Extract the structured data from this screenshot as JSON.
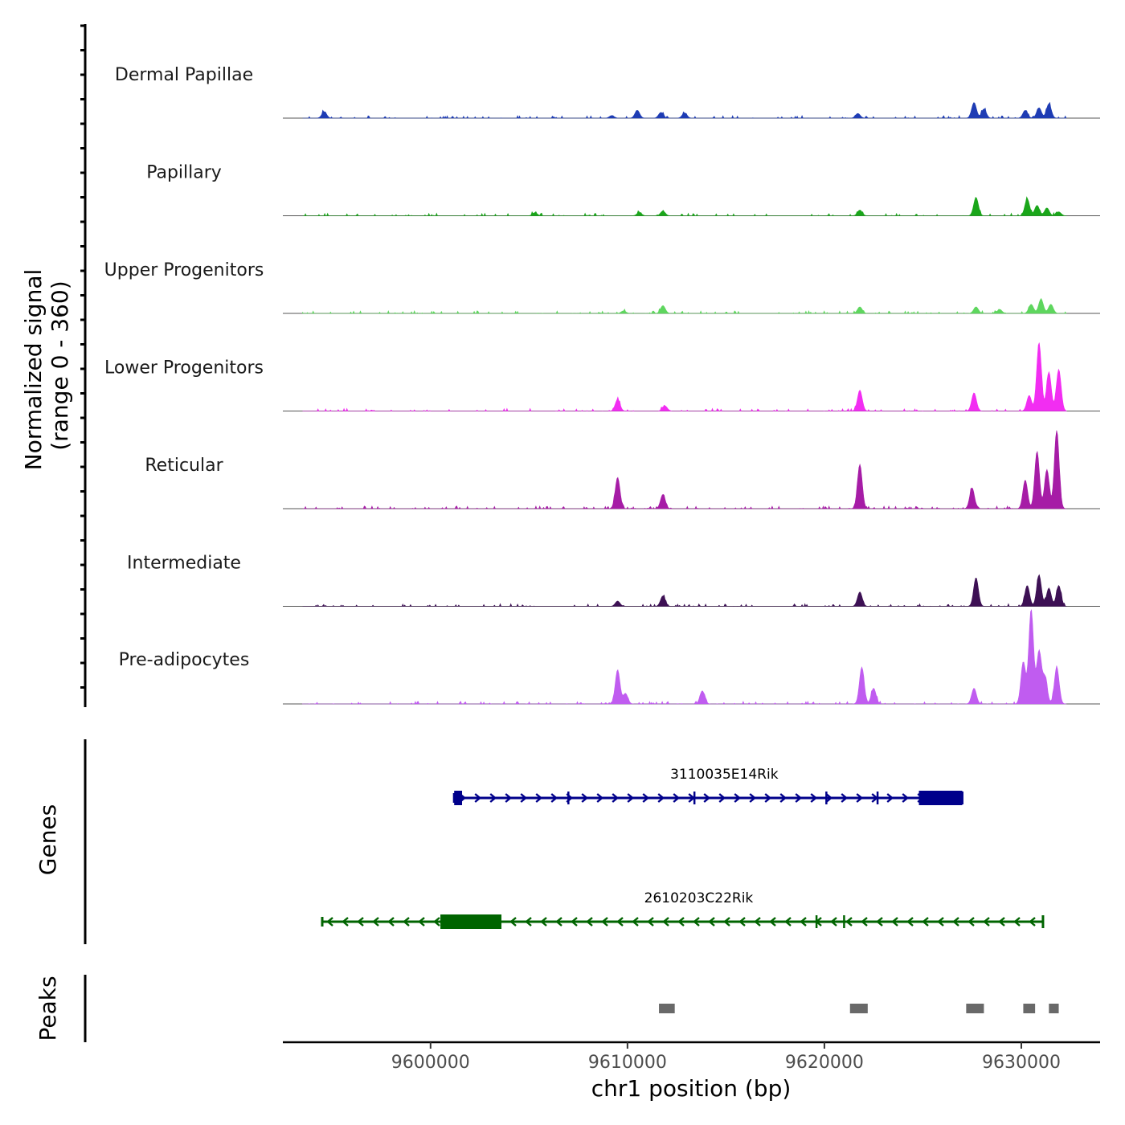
{
  "chart_data": {
    "type": "area",
    "title": "",
    "xlabel": "chr1 position (bp)",
    "ylabel": "Normalized signal",
    "ylabel_range": "(range 0 - 360)",
    "xlim": [
      9592500,
      9634000
    ],
    "ylim": [
      0,
      360
    ],
    "x_ticks": [
      9600000,
      9610000,
      9620000,
      9630000
    ],
    "x_tick_labels": [
      "9600000",
      "9610000",
      "9620000",
      "9630000"
    ],
    "series": [
      {
        "name": "Dermal Papillae",
        "color": "#1e3cb4",
        "peaks": [
          [
            9594600,
            25
          ],
          [
            9609200,
            10
          ],
          [
            9610500,
            30
          ],
          [
            9611700,
            22
          ],
          [
            9612900,
            20
          ],
          [
            9621700,
            18
          ],
          [
            9627600,
            60
          ],
          [
            9628100,
            35
          ],
          [
            9630200,
            30
          ],
          [
            9630900,
            40
          ],
          [
            9631400,
            55
          ]
        ]
      },
      {
        "name": "Papillary",
        "color": "#1aa61a",
        "peaks": [
          [
            9605300,
            12
          ],
          [
            9610600,
            12
          ],
          [
            9611800,
            18
          ],
          [
            9621800,
            22
          ],
          [
            9627700,
            70
          ],
          [
            9630300,
            65
          ],
          [
            9630800,
            40
          ],
          [
            9631300,
            30
          ],
          [
            9631900,
            15
          ]
        ]
      },
      {
        "name": "Upper Progenitors",
        "color": "#5ed65e",
        "peaks": [
          [
            9609800,
            10
          ],
          [
            9611800,
            30
          ],
          [
            9621800,
            25
          ],
          [
            9627700,
            25
          ],
          [
            9628900,
            15
          ],
          [
            9630500,
            35
          ],
          [
            9631000,
            55
          ],
          [
            9631500,
            35
          ]
        ]
      },
      {
        "name": "Lower Progenitors",
        "color": "#f22df2",
        "peaks": [
          [
            9609500,
            45
          ],
          [
            9611900,
            20
          ],
          [
            9621800,
            80
          ],
          [
            9627600,
            70
          ],
          [
            9630400,
            60
          ],
          [
            9630900,
            260
          ],
          [
            9631400,
            150
          ],
          [
            9631900,
            160
          ]
        ]
      },
      {
        "name": "Reticular",
        "color": "#a61ca6",
        "peaks": [
          [
            9609500,
            120
          ],
          [
            9611800,
            55
          ],
          [
            9621800,
            170
          ],
          [
            9627500,
            80
          ],
          [
            9630200,
            110
          ],
          [
            9630800,
            220
          ],
          [
            9631300,
            150
          ],
          [
            9631800,
            300
          ]
        ]
      },
      {
        "name": "Intermediate",
        "color": "#3d1054",
        "peaks": [
          [
            9609500,
            20
          ],
          [
            9611800,
            40
          ],
          [
            9621800,
            55
          ],
          [
            9627700,
            110
          ],
          [
            9630300,
            80
          ],
          [
            9630900,
            120
          ],
          [
            9631400,
            70
          ],
          [
            9631900,
            80
          ]
        ]
      },
      {
        "name": "Pre-adipocytes",
        "color": "#c05cf0",
        "peaks": [
          [
            9609500,
            130
          ],
          [
            9609900,
            40
          ],
          [
            9613800,
            50
          ],
          [
            9621900,
            140
          ],
          [
            9622500,
            60
          ],
          [
            9627600,
            60
          ],
          [
            9630100,
            160
          ],
          [
            9630500,
            360
          ],
          [
            9630900,
            200
          ],
          [
            9631200,
            100
          ],
          [
            9631800,
            140
          ]
        ]
      }
    ],
    "genes_track_label": "Genes",
    "genes": [
      {
        "name": "3110035E14Rik",
        "strand": "+",
        "color": "#00008b",
        "start": 9601200,
        "end": 9627000,
        "thick_exons": [
          [
            9601200,
            9601600
          ],
          [
            9624800,
            9627000
          ]
        ],
        "exon_marks": [
          9607000,
          9613400,
          9620100,
          9622700
        ]
      },
      {
        "name": "2610203C22Rik",
        "strand": "-",
        "color": "#006400",
        "start": 9594500,
        "end": 9631100,
        "thick_exons": [
          [
            9600500,
            9603600
          ]
        ],
        "exon_marks": [
          9619600,
          9621000
        ]
      }
    ],
    "peaks_track_label": "Peaks",
    "peak_regions": [
      [
        9611600,
        9612400
      ],
      [
        9621300,
        9622200
      ],
      [
        9627200,
        9628100
      ],
      [
        9630100,
        9630700
      ],
      [
        9631400,
        9631900
      ]
    ]
  }
}
